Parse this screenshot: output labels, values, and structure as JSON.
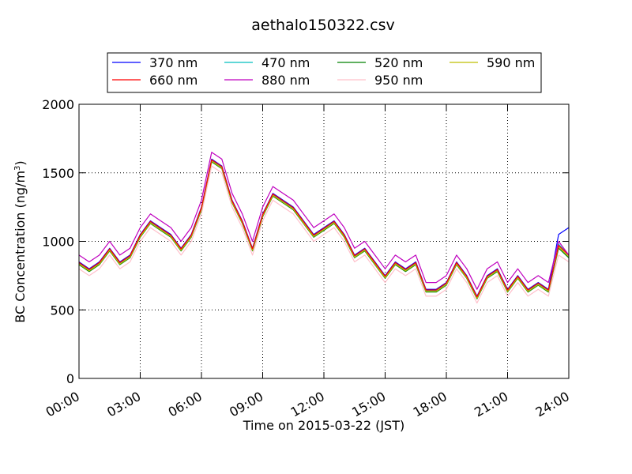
{
  "chart_data": {
    "type": "line",
    "title": "aethalo150322.csv",
    "xlabel": "Time on 2015-03-22 (JST)",
    "ylabel": "BC Concentration (ng/m",
    "ylabel_sup": "3",
    "ylabel_close": ")",
    "xlim": [
      "00:00",
      "24:00"
    ],
    "ylim": [
      0,
      2000
    ],
    "x_ticks": [
      "00:00",
      "03:00",
      "06:00",
      "09:00",
      "12:00",
      "15:00",
      "18:00",
      "21:00",
      "24:00"
    ],
    "y_ticks": [
      "0",
      "500",
      "1000",
      "1500",
      "2000"
    ],
    "grid": true,
    "legend_position": "top",
    "x_hours": [
      0,
      0.5,
      1,
      1.5,
      2,
      2.5,
      3,
      3.5,
      4,
      4.5,
      5,
      5.5,
      6,
      6.5,
      7,
      7.5,
      8,
      8.5,
      9,
      9.5,
      10,
      10.5,
      11,
      11.5,
      12,
      12.5,
      13,
      13.5,
      14,
      14.5,
      15,
      15.5,
      16,
      16.5,
      17,
      17.5,
      18,
      18.5,
      19,
      19.5,
      20,
      20.5,
      21,
      21.5,
      22,
      22.5,
      23,
      23.5,
      24
    ],
    "series": [
      {
        "name": "370 nm",
        "color": "#0000ff",
        "values": [
          850,
          800,
          850,
          950,
          850,
          900,
          1050,
          1150,
          1100,
          1050,
          950,
          1050,
          1250,
          1600,
          1550,
          1300,
          1150,
          950,
          1200,
          1350,
          1300,
          1250,
          1150,
          1050,
          1100,
          1150,
          1050,
          900,
          950,
          850,
          750,
          850,
          800,
          850,
          650,
          650,
          700,
          850,
          750,
          600,
          750,
          800,
          650,
          750,
          650,
          700,
          650,
          1050,
          1100
        ]
      },
      {
        "name": "470 nm",
        "color": "#00bfbf",
        "values": [
          840,
          790,
          840,
          940,
          840,
          890,
          1040,
          1140,
          1090,
          1040,
          940,
          1040,
          1240,
          1590,
          1540,
          1290,
          1140,
          940,
          1190,
          1340,
          1290,
          1240,
          1140,
          1040,
          1090,
          1140,
          1040,
          890,
          940,
          840,
          740,
          840,
          790,
          840,
          640,
          640,
          690,
          840,
          740,
          590,
          740,
          790,
          640,
          740,
          640,
          690,
          640,
          980,
          900
        ]
      },
      {
        "name": "520 nm",
        "color": "#008000",
        "values": [
          830,
          780,
          830,
          930,
          830,
          880,
          1030,
          1130,
          1080,
          1030,
          930,
          1030,
          1230,
          1580,
          1530,
          1280,
          1130,
          930,
          1180,
          1330,
          1280,
          1230,
          1130,
          1030,
          1080,
          1130,
          1030,
          880,
          930,
          830,
          730,
          830,
          780,
          830,
          630,
          630,
          680,
          830,
          730,
          580,
          730,
          780,
          630,
          730,
          630,
          680,
          630,
          950,
          880
        ]
      },
      {
        "name": "590 nm",
        "color": "#bfbf00",
        "values": [
          835,
          785,
          835,
          935,
          835,
          885,
          1035,
          1135,
          1085,
          1035,
          935,
          1035,
          1235,
          1585,
          1535,
          1285,
          1135,
          935,
          1185,
          1335,
          1285,
          1235,
          1135,
          1035,
          1085,
          1135,
          1035,
          885,
          935,
          835,
          735,
          835,
          785,
          835,
          635,
          635,
          685,
          835,
          735,
          585,
          735,
          785,
          635,
          735,
          635,
          685,
          635,
          960,
          890
        ]
      },
      {
        "name": "660 nm",
        "color": "#ff0000",
        "values": [
          845,
          795,
          845,
          945,
          845,
          895,
          1045,
          1145,
          1095,
          1045,
          945,
          1045,
          1245,
          1595,
          1545,
          1295,
          1145,
          945,
          1195,
          1345,
          1295,
          1245,
          1145,
          1045,
          1095,
          1145,
          1045,
          895,
          945,
          845,
          745,
          845,
          795,
          845,
          645,
          645,
          695,
          845,
          745,
          595,
          745,
          795,
          645,
          745,
          645,
          695,
          645,
          970,
          900
        ]
      },
      {
        "name": "880 nm",
        "color": "#bf00bf",
        "values": [
          900,
          850,
          900,
          1000,
          900,
          950,
          1100,
          1200,
          1150,
          1100,
          1000,
          1100,
          1300,
          1650,
          1600,
          1350,
          1200,
          1000,
          1250,
          1400,
          1350,
          1300,
          1200,
          1100,
          1150,
          1200,
          1100,
          950,
          1000,
          900,
          800,
          900,
          850,
          900,
          700,
          700,
          750,
          900,
          800,
          650,
          800,
          850,
          700,
          800,
          700,
          750,
          700,
          1000,
          900
        ]
      },
      {
        "name": "950 nm",
        "color": "#ffc0cb",
        "values": [
          800,
          750,
          800,
          900,
          800,
          850,
          1000,
          1100,
          1050,
          1000,
          900,
          1000,
          1200,
          1550,
          1500,
          1250,
          1100,
          900,
          1150,
          1300,
          1250,
          1200,
          1100,
          1000,
          1050,
          1100,
          1000,
          850,
          900,
          800,
          700,
          800,
          750,
          800,
          600,
          600,
          650,
          800,
          700,
          550,
          700,
          750,
          600,
          700,
          600,
          650,
          600,
          900,
          850
        ]
      }
    ]
  }
}
